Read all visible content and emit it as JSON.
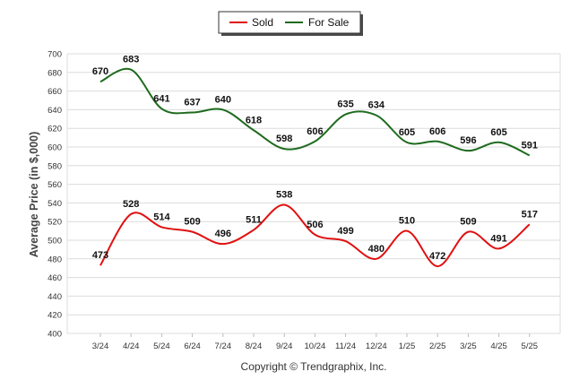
{
  "chart_data": {
    "type": "line",
    "categories": [
      "3/24",
      "4/24",
      "5/24",
      "6/24",
      "7/24",
      "8/24",
      "9/24",
      "10/24",
      "11/24",
      "12/24",
      "1/25",
      "2/25",
      "3/25",
      "4/25",
      "5/25"
    ],
    "series": [
      {
        "name": "Sold",
        "color": "#e01010",
        "values": [
          473,
          528,
          514,
          509,
          496,
          511,
          538,
          506,
          499,
          480,
          510,
          472,
          509,
          491,
          517
        ]
      },
      {
        "name": "For Sale",
        "color": "#1e6b1e",
        "values": [
          670,
          683,
          641,
          637,
          640,
          618,
          598,
          606,
          635,
          634,
          605,
          606,
          596,
          605,
          591
        ]
      }
    ],
    "title": "",
    "xlabel": "",
    "ylabel": "Average Price (in $,000)",
    "ylim": [
      400,
      700
    ],
    "yticks": [
      400,
      420,
      440,
      460,
      480,
      500,
      520,
      540,
      560,
      580,
      600,
      620,
      640,
      660,
      680,
      700
    ],
    "grid": true,
    "legend_position": "top-center",
    "data_labels": true
  },
  "footer": {
    "copyright": "Copyright © Trendgraphix, Inc."
  }
}
